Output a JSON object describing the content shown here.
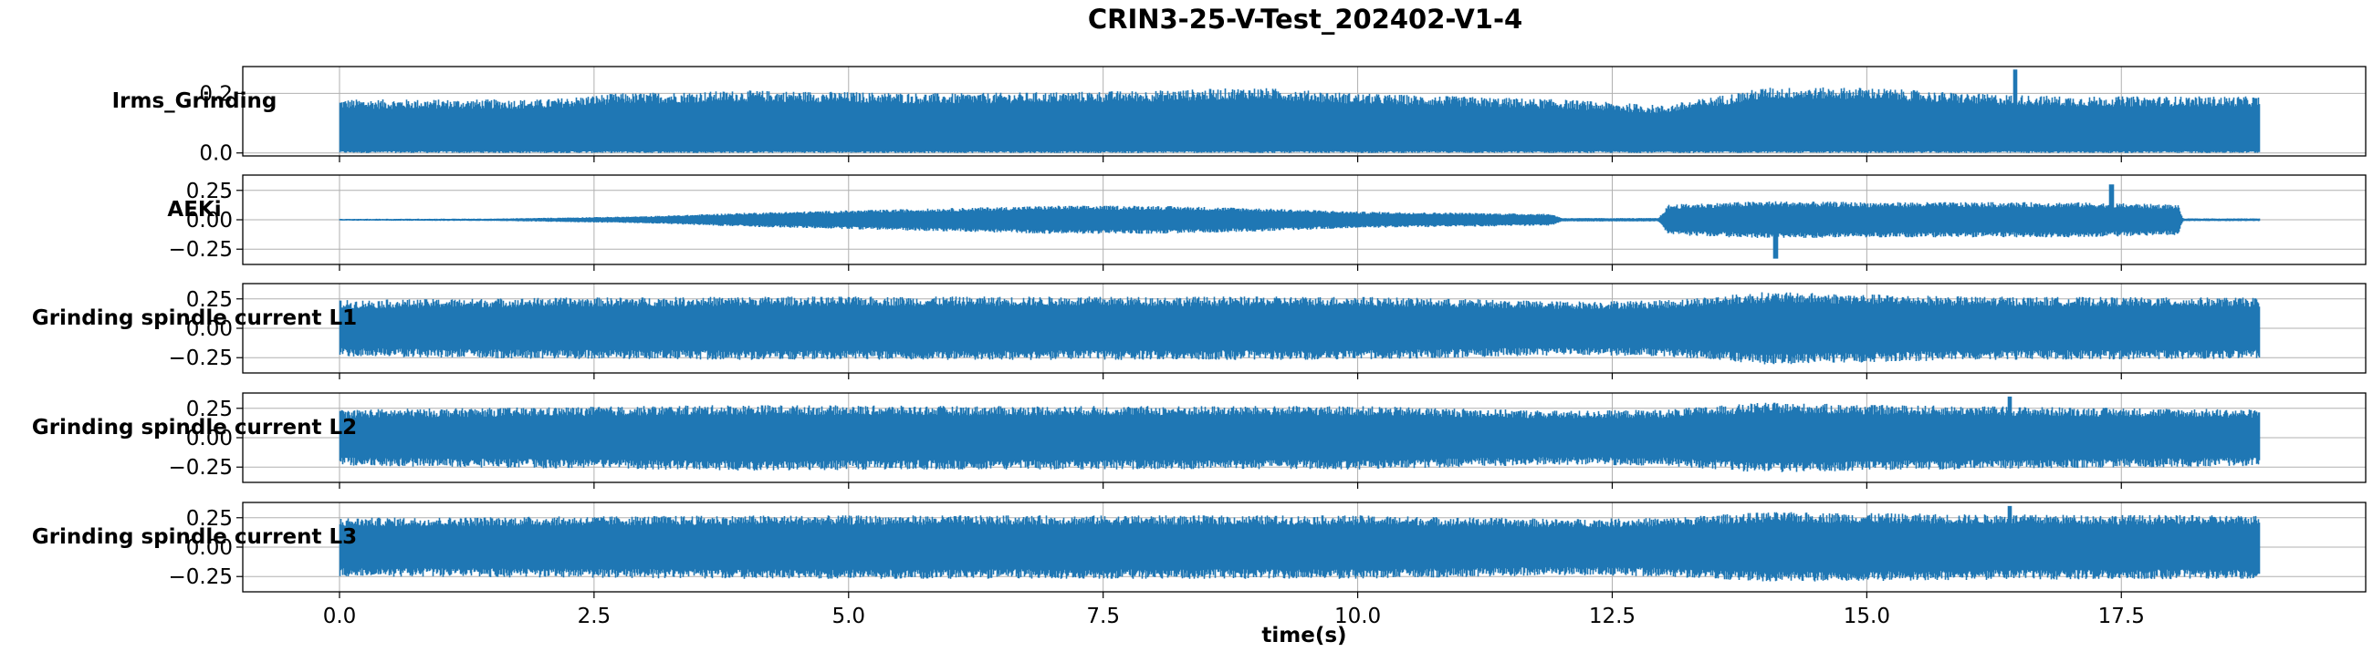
{
  "chart_data": {
    "type": "line",
    "title": "CRIN3-25-V-Test_202402-V1-4",
    "xlabel": "time(s)",
    "xlim": [
      -0.95,
      19.9
    ],
    "x_range_data": [
      0.0,
      18.85
    ],
    "x_ticks": [
      0.0,
      2.5,
      5.0,
      7.5,
      10.0,
      12.5,
      15.0,
      17.5
    ],
    "x_tick_labels": [
      "0.0",
      "2.5",
      "5.0",
      "7.5",
      "10.0",
      "12.5",
      "15.0",
      "17.5"
    ],
    "grid": true,
    "line_color": "#1f77b4",
    "panels": [
      {
        "ylabel": "Irms_Grinding",
        "ylim": [
          -0.01,
          0.29
        ],
        "y_ticks": [
          0.0,
          0.2
        ],
        "y_tick_labels": [
          "0.0",
          "0.2"
        ],
        "signal": {
          "kind": "rms",
          "min": 0.0,
          "typical_max": 0.19,
          "peak": 0.28,
          "peak_time": 16.45
        },
        "envelope": [
          [
            0,
            0.18
          ],
          [
            2,
            0.18
          ],
          [
            2.7,
            0.2
          ],
          [
            4,
            0.21
          ],
          [
            6,
            0.2
          ],
          [
            8,
            0.21
          ],
          [
            9,
            0.22
          ],
          [
            10,
            0.2
          ],
          [
            12,
            0.18
          ],
          [
            13,
            0.16
          ],
          [
            14,
            0.22
          ],
          [
            15,
            0.22
          ],
          [
            16,
            0.2
          ],
          [
            17,
            0.19
          ],
          [
            18.85,
            0.19
          ]
        ]
      },
      {
        "ylabel": "AEKi",
        "ylim": [
          -0.38,
          0.38
        ],
        "y_ticks": [
          -0.25,
          0.0,
          0.25
        ],
        "y_tick_labels": [
          "−0.25",
          "0.00",
          "0.25"
        ],
        "signal": {
          "kind": "bipolar",
          "center": 0.0,
          "peak": 0.3,
          "peak_time": 17.4,
          "trough": -0.33,
          "trough_time": 14.1
        },
        "envelope": [
          [
            0,
            0.008
          ],
          [
            1.5,
            0.01
          ],
          [
            3,
            0.03
          ],
          [
            4,
            0.06
          ],
          [
            5,
            0.08
          ],
          [
            6,
            0.1
          ],
          [
            7,
            0.12
          ],
          [
            8,
            0.12
          ],
          [
            9,
            0.1
          ],
          [
            10,
            0.07
          ],
          [
            11,
            0.06
          ],
          [
            11.9,
            0.05
          ],
          [
            12,
            0.015
          ],
          [
            12.95,
            0.015
          ],
          [
            13.05,
            0.13
          ],
          [
            14,
            0.16
          ],
          [
            15,
            0.15
          ],
          [
            16,
            0.15
          ],
          [
            17,
            0.15
          ],
          [
            18.05,
            0.13
          ],
          [
            18.1,
            0.012
          ],
          [
            18.85,
            0.012
          ]
        ]
      },
      {
        "ylabel": "Grinding spindle current L1",
        "ylim": [
          -0.38,
          0.38
        ],
        "y_ticks": [
          -0.25,
          0.0,
          0.25
        ],
        "y_tick_labels": [
          "−0.25",
          "0.00",
          "0.25"
        ],
        "signal": {
          "kind": "bipolar",
          "center": 0.0
        },
        "envelope": [
          [
            0,
            0.24
          ],
          [
            2,
            0.26
          ],
          [
            4,
            0.27
          ],
          [
            6,
            0.27
          ],
          [
            8,
            0.27
          ],
          [
            10,
            0.27
          ],
          [
            12,
            0.23
          ],
          [
            13,
            0.24
          ],
          [
            14,
            0.31
          ],
          [
            15,
            0.29
          ],
          [
            16,
            0.27
          ],
          [
            18.85,
            0.26
          ]
        ]
      },
      {
        "ylabel": "Grinding spindle current L2",
        "ylim": [
          -0.38,
          0.38
        ],
        "y_ticks": [
          -0.25,
          0.0,
          0.25
        ],
        "y_tick_labels": [
          "−0.25",
          "0.00",
          "0.25"
        ],
        "signal": {
          "kind": "bipolar",
          "center": 0.0,
          "peak": 0.35,
          "peak_time": 16.4
        },
        "envelope": [
          [
            0,
            0.24
          ],
          [
            2,
            0.26
          ],
          [
            4,
            0.28
          ],
          [
            6,
            0.27
          ],
          [
            8,
            0.27
          ],
          [
            10,
            0.27
          ],
          [
            12,
            0.23
          ],
          [
            13,
            0.24
          ],
          [
            14,
            0.3
          ],
          [
            15,
            0.28
          ],
          [
            16,
            0.27
          ],
          [
            18.85,
            0.24
          ]
        ]
      },
      {
        "ylabel": "Grinding spindle current L3",
        "ylim": [
          -0.38,
          0.38
        ],
        "y_ticks": [
          -0.25,
          0.0,
          0.25
        ],
        "y_tick_labels": [
          "−0.25",
          "0.00",
          "0.25"
        ],
        "signal": {
          "kind": "bipolar",
          "center": 0.0,
          "peak": 0.35,
          "peak_time": 16.4
        },
        "envelope": [
          [
            0,
            0.25
          ],
          [
            2,
            0.26
          ],
          [
            4,
            0.27
          ],
          [
            6,
            0.27
          ],
          [
            8,
            0.27
          ],
          [
            10,
            0.27
          ],
          [
            12,
            0.24
          ],
          [
            13,
            0.25
          ],
          [
            14,
            0.3
          ],
          [
            15,
            0.29
          ],
          [
            16,
            0.28
          ],
          [
            18.85,
            0.27
          ]
        ]
      }
    ]
  }
}
